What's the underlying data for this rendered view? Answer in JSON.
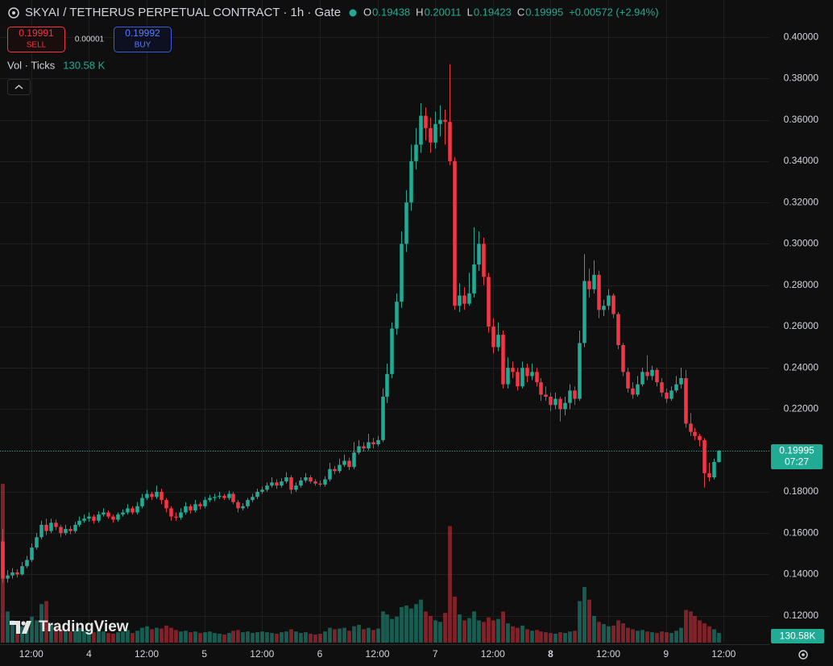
{
  "chart_data": {
    "type": "candlestick",
    "title": "SKYAI / TETHERUS PERPETUAL CONTRACT · 1h · Gate",
    "ohlc_labels": [
      "O",
      "H",
      "L",
      "C"
    ],
    "change": "+0.00572 (+2.94%)",
    "sell_price": 0.19991,
    "sell_label": "SELL",
    "spread": 1e-05,
    "buy_price": 0.19992,
    "buy_label": "BUY",
    "volume_title": "Vol · Ticks",
    "volume_value_text": "130.58 K",
    "volume_axis_label": "130.58K",
    "countdown": "07:27",
    "watermark": "TradingView",
    "up_color": "#22ab94",
    "down_color": "#f23645",
    "grid": true,
    "xlim": [
      -0.5,
      159.5
    ],
    "xticks": [
      {
        "value": 6,
        "label": "12:00"
      },
      {
        "value": 18,
        "label": "4"
      },
      {
        "value": 30,
        "label": "12:00"
      },
      {
        "value": 42,
        "label": "5"
      },
      {
        "value": 54,
        "label": "12:00"
      },
      {
        "value": 66,
        "label": "6"
      },
      {
        "value": 78,
        "label": "12:00"
      },
      {
        "value": 90,
        "label": "7"
      },
      {
        "value": 102,
        "label": "12:00"
      },
      {
        "value": 114,
        "label": "8"
      },
      {
        "value": 126,
        "label": "12:00"
      },
      {
        "value": 138,
        "label": "9"
      },
      {
        "value": 150,
        "label": "12:00"
      }
    ],
    "ylim": [
      0.107,
      0.418
    ],
    "yticks": [
      {
        "value": 0.4,
        "label": "0.40000"
      },
      {
        "value": 0.38,
        "label": "0.38000"
      },
      {
        "value": 0.36,
        "label": "0.36000"
      },
      {
        "value": 0.34,
        "label": "0.34000"
      },
      {
        "value": 0.32,
        "label": "0.32000"
      },
      {
        "value": 0.3,
        "label": "0.30000"
      },
      {
        "value": 0.28,
        "label": "0.28000"
      },
      {
        "value": 0.26,
        "label": "0.26000"
      },
      {
        "value": 0.24,
        "label": "0.24000"
      },
      {
        "value": 0.22,
        "label": "0.22000"
      },
      {
        "value": 0.2,
        "label": "0.20000"
      },
      {
        "value": 0.18,
        "label": "0.18000"
      },
      {
        "value": 0.16,
        "label": "0.16000"
      },
      {
        "value": 0.14,
        "label": "0.14000"
      },
      {
        "value": 0.12,
        "label": "0.12000"
      }
    ],
    "y2lim": [
      0,
      5000000
    ],
    "candles": [
      [
        0.156,
        0.162,
        0.136,
        0.138
      ],
      [
        0.138,
        0.142,
        0.136,
        0.1395
      ],
      [
        0.1395,
        0.143,
        0.138,
        0.141
      ],
      [
        0.141,
        0.1425,
        0.1385,
        0.14
      ],
      [
        0.14,
        0.146,
        0.1395,
        0.144
      ],
      [
        0.144,
        0.149,
        0.143,
        0.147
      ],
      [
        0.147,
        0.155,
        0.146,
        0.153
      ],
      [
        0.153,
        0.16,
        0.152,
        0.158
      ],
      [
        0.158,
        0.166,
        0.157,
        0.164
      ],
      [
        0.164,
        0.167,
        0.159,
        0.161
      ],
      [
        0.161,
        0.167,
        0.16,
        0.165
      ],
      [
        0.165,
        0.1665,
        0.1615,
        0.163
      ],
      [
        0.163,
        0.164,
        0.158,
        0.16
      ],
      [
        0.16,
        0.164,
        0.159,
        0.162
      ],
      [
        0.162,
        0.1635,
        0.1595,
        0.161
      ],
      [
        0.161,
        0.1655,
        0.16,
        0.164
      ],
      [
        0.164,
        0.168,
        0.163,
        0.166
      ],
      [
        0.166,
        0.169,
        0.165,
        0.167
      ],
      [
        0.167,
        0.17,
        0.1655,
        0.168
      ],
      [
        0.168,
        0.169,
        0.1645,
        0.166
      ],
      [
        0.166,
        0.1705,
        0.165,
        0.169
      ],
      [
        0.169,
        0.172,
        0.168,
        0.17
      ],
      [
        0.17,
        0.171,
        0.167,
        0.168
      ],
      [
        0.168,
        0.169,
        0.165,
        0.1665
      ],
      [
        0.1665,
        0.17,
        0.1655,
        0.169
      ],
      [
        0.169,
        0.1715,
        0.168,
        0.17
      ],
      [
        0.17,
        0.174,
        0.169,
        0.172
      ],
      [
        0.172,
        0.173,
        0.169,
        0.17
      ],
      [
        0.17,
        0.175,
        0.169,
        0.173
      ],
      [
        0.173,
        0.179,
        0.172,
        0.177
      ],
      [
        0.177,
        0.181,
        0.176,
        0.179
      ],
      [
        0.179,
        0.18,
        0.176,
        0.1775
      ],
      [
        0.1775,
        0.183,
        0.1765,
        0.18
      ],
      [
        0.18,
        0.1815,
        0.174,
        0.176
      ],
      [
        0.176,
        0.177,
        0.17,
        0.172
      ],
      [
        0.172,
        0.173,
        0.166,
        0.168
      ],
      [
        0.168,
        0.17,
        0.166,
        0.1675
      ],
      [
        0.1675,
        0.172,
        0.1665,
        0.17
      ],
      [
        0.17,
        0.175,
        0.169,
        0.173
      ],
      [
        0.173,
        0.174,
        0.1695,
        0.171
      ],
      [
        0.171,
        0.176,
        0.17,
        0.174
      ],
      [
        0.174,
        0.175,
        0.1715,
        0.173
      ],
      [
        0.173,
        0.1775,
        0.172,
        0.176
      ],
      [
        0.176,
        0.1785,
        0.175,
        0.177
      ],
      [
        0.177,
        0.179,
        0.1755,
        0.1775
      ],
      [
        0.1775,
        0.18,
        0.1765,
        0.178
      ],
      [
        0.178,
        0.179,
        0.176,
        0.177
      ],
      [
        0.177,
        0.1805,
        0.176,
        0.179
      ],
      [
        0.179,
        0.18,
        0.174,
        0.175
      ],
      [
        0.175,
        0.176,
        0.17,
        0.172
      ],
      [
        0.172,
        0.1745,
        0.171,
        0.173
      ],
      [
        0.173,
        0.177,
        0.172,
        0.176
      ],
      [
        0.176,
        0.179,
        0.175,
        0.1775
      ],
      [
        0.1775,
        0.1815,
        0.1765,
        0.18
      ],
      [
        0.18,
        0.1825,
        0.179,
        0.181
      ],
      [
        0.181,
        0.1845,
        0.18,
        0.183
      ],
      [
        0.183,
        0.187,
        0.182,
        0.1845
      ],
      [
        0.1845,
        0.186,
        0.1815,
        0.183
      ],
      [
        0.183,
        0.1865,
        0.182,
        0.185
      ],
      [
        0.185,
        0.1895,
        0.184,
        0.187
      ],
      [
        0.187,
        0.188,
        0.179,
        0.181
      ],
      [
        0.181,
        0.1845,
        0.18,
        0.183
      ],
      [
        0.183,
        0.187,
        0.182,
        0.1855
      ],
      [
        0.1855,
        0.189,
        0.1845,
        0.187
      ],
      [
        0.187,
        0.188,
        0.184,
        0.185
      ],
      [
        0.185,
        0.186,
        0.183,
        0.184
      ],
      [
        0.184,
        0.1855,
        0.1825,
        0.1835
      ],
      [
        0.1835,
        0.1875,
        0.1825,
        0.186
      ],
      [
        0.186,
        0.194,
        0.185,
        0.191
      ],
      [
        0.191,
        0.1925,
        0.1885,
        0.19
      ],
      [
        0.19,
        0.196,
        0.189,
        0.193
      ],
      [
        0.193,
        0.198,
        0.192,
        0.195
      ],
      [
        0.195,
        0.1965,
        0.1905,
        0.192
      ],
      [
        0.192,
        0.204,
        0.191,
        0.199
      ],
      [
        0.199,
        0.205,
        0.198,
        0.202
      ],
      [
        0.202,
        0.204,
        0.1995,
        0.201
      ],
      [
        0.201,
        0.208,
        0.2,
        0.204
      ],
      [
        0.204,
        0.206,
        0.201,
        0.203
      ],
      [
        0.203,
        0.207,
        0.202,
        0.205
      ],
      [
        0.205,
        0.23,
        0.204,
        0.226
      ],
      [
        0.226,
        0.242,
        0.223,
        0.237
      ],
      [
        0.237,
        0.262,
        0.235,
        0.259
      ],
      [
        0.259,
        0.276,
        0.256,
        0.272
      ],
      [
        0.272,
        0.306,
        0.269,
        0.3
      ],
      [
        0.3,
        0.326,
        0.296,
        0.32
      ],
      [
        0.32,
        0.348,
        0.316,
        0.34
      ],
      [
        0.34,
        0.356,
        0.336,
        0.348
      ],
      [
        0.348,
        0.368,
        0.344,
        0.362
      ],
      [
        0.362,
        0.366,
        0.35,
        0.356
      ],
      [
        0.356,
        0.361,
        0.344,
        0.349
      ],
      [
        0.349,
        0.364,
        0.346,
        0.358
      ],
      [
        0.358,
        0.367,
        0.352,
        0.36
      ],
      [
        0.36,
        0.365,
        0.348,
        0.359
      ],
      [
        0.359,
        0.387,
        0.338,
        0.34
      ],
      [
        0.34,
        0.342,
        0.268,
        0.27
      ],
      [
        0.27,
        0.281,
        0.267,
        0.275
      ],
      [
        0.275,
        0.279,
        0.268,
        0.271
      ],
      [
        0.271,
        0.286,
        0.27,
        0.276
      ],
      [
        0.276,
        0.308,
        0.274,
        0.29
      ],
      [
        0.29,
        0.306,
        0.287,
        0.3
      ],
      [
        0.3,
        0.303,
        0.28,
        0.284
      ],
      [
        0.284,
        0.286,
        0.257,
        0.26
      ],
      [
        0.26,
        0.264,
        0.247,
        0.25
      ],
      [
        0.25,
        0.262,
        0.248,
        0.256
      ],
      [
        0.256,
        0.258,
        0.23,
        0.232
      ],
      [
        0.232,
        0.245,
        0.23,
        0.24
      ],
      [
        0.24,
        0.243,
        0.235,
        0.238
      ],
      [
        0.238,
        0.24,
        0.229,
        0.231
      ],
      [
        0.231,
        0.243,
        0.23,
        0.24
      ],
      [
        0.24,
        0.242,
        0.233,
        0.236
      ],
      [
        0.236,
        0.242,
        0.234,
        0.238
      ],
      [
        0.238,
        0.24,
        0.231,
        0.233
      ],
      [
        0.233,
        0.235,
        0.224,
        0.227
      ],
      [
        0.227,
        0.231,
        0.224,
        0.226
      ],
      [
        0.226,
        0.228,
        0.219,
        0.222
      ],
      [
        0.222,
        0.228,
        0.22,
        0.225
      ],
      [
        0.225,
        0.226,
        0.214,
        0.22
      ],
      [
        0.22,
        0.226,
        0.217,
        0.223
      ],
      [
        0.223,
        0.232,
        0.22,
        0.229
      ],
      [
        0.229,
        0.231,
        0.222,
        0.225
      ],
      [
        0.225,
        0.258,
        0.224,
        0.252
      ],
      [
        0.252,
        0.295,
        0.25,
        0.282
      ],
      [
        0.282,
        0.288,
        0.274,
        0.278
      ],
      [
        0.278,
        0.292,
        0.276,
        0.285
      ],
      [
        0.285,
        0.287,
        0.264,
        0.268
      ],
      [
        0.268,
        0.273,
        0.265,
        0.27
      ],
      [
        0.27,
        0.278,
        0.268,
        0.275
      ],
      [
        0.275,
        0.276,
        0.264,
        0.266
      ],
      [
        0.266,
        0.267,
        0.249,
        0.251
      ],
      [
        0.251,
        0.252,
        0.236,
        0.238
      ],
      [
        0.238,
        0.24,
        0.228,
        0.23
      ],
      [
        0.23,
        0.233,
        0.225,
        0.227
      ],
      [
        0.227,
        0.236,
        0.226,
        0.232
      ],
      [
        0.232,
        0.24,
        0.231,
        0.238
      ],
      [
        0.238,
        0.246,
        0.234,
        0.236
      ],
      [
        0.236,
        0.241,
        0.234,
        0.239
      ],
      [
        0.239,
        0.24,
        0.231,
        0.233
      ],
      [
        0.233,
        0.235,
        0.226,
        0.228
      ],
      [
        0.228,
        0.23,
        0.223,
        0.225
      ],
      [
        0.225,
        0.231,
        0.224,
        0.229
      ],
      [
        0.229,
        0.236,
        0.228,
        0.232
      ],
      [
        0.232,
        0.24,
        0.23,
        0.235
      ],
      [
        0.235,
        0.239,
        0.211,
        0.213
      ],
      [
        0.213,
        0.218,
        0.207,
        0.209
      ],
      [
        0.209,
        0.211,
        0.205,
        0.207
      ],
      [
        0.207,
        0.208,
        0.202,
        0.205
      ],
      [
        0.205,
        0.206,
        0.182,
        0.189
      ],
      [
        0.189,
        0.194,
        0.185,
        0.187
      ],
      [
        0.187,
        0.196,
        0.186,
        0.1944
      ],
      [
        0.19438,
        0.20011,
        0.19423,
        0.19995
      ]
    ],
    "volume": [
      2140000,
      420000,
      300000,
      250000,
      220000,
      200000,
      350000,
      300000,
      520000,
      560000,
      250000,
      200000,
      180000,
      160000,
      150000,
      170000,
      200000,
      160000,
      150000,
      140000,
      160000,
      150000,
      130000,
      120000,
      140000,
      150000,
      170000,
      130000,
      160000,
      200000,
      220000,
      180000,
      200000,
      190000,
      230000,
      200000,
      170000,
      150000,
      160000,
      140000,
      150000,
      130000,
      140000,
      150000,
      130000,
      120000,
      110000,
      130000,
      160000,
      170000,
      140000,
      150000,
      130000,
      140000,
      150000,
      140000,
      130000,
      120000,
      140000,
      150000,
      180000,
      150000,
      130000,
      140000,
      120000,
      110000,
      120000,
      150000,
      200000,
      180000,
      190000,
      200000,
      160000,
      220000,
      240000,
      180000,
      200000,
      170000,
      190000,
      420000,
      380000,
      320000,
      350000,
      480000,
      500000,
      460000,
      520000,
      580000,
      420000,
      360000,
      300000,
      280000,
      400000,
      1570000,
      620000,
      380000,
      300000,
      330000,
      420000,
      300000,
      280000,
      340000,
      300000,
      320000,
      420000,
      260000,
      220000,
      200000,
      230000,
      180000,
      160000,
      170000,
      150000,
      140000,
      130000,
      120000,
      140000,
      130000,
      150000,
      160000,
      560000,
      750000,
      580000,
      360000,
      280000,
      250000,
      220000,
      230000,
      300000,
      260000,
      200000,
      180000,
      160000,
      170000,
      150000,
      140000,
      130000,
      150000,
      140000,
      130000,
      160000,
      200000,
      440000,
      420000,
      360000,
      300000,
      260000,
      220000,
      180000,
      130580
    ]
  }
}
